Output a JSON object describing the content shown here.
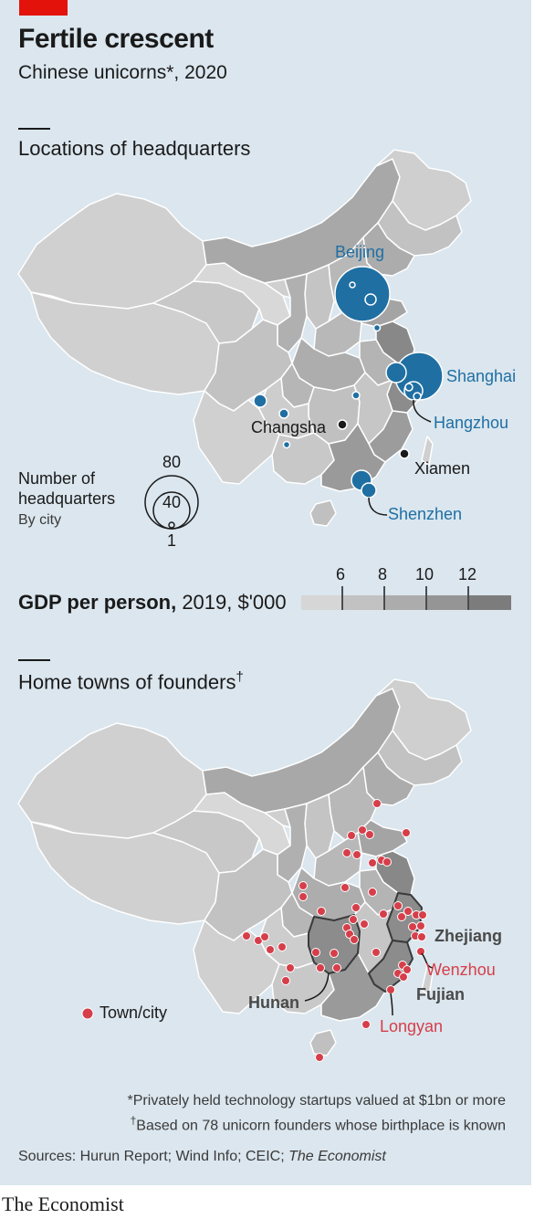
{
  "header": {
    "title": "Fertile crescent",
    "subtitle": "Chinese unicorns*, 2020"
  },
  "map1": {
    "title": "Locations of headquarters",
    "cities": {
      "beijing": "Beijing",
      "shanghai": "Shanghai",
      "hangzhou": "Hangzhou",
      "changsha": "Changsha",
      "xiamen": "Xiamen",
      "shenzhen": "Shenzhen"
    },
    "legend": {
      "line1": "Number of",
      "line2": "headquarters",
      "line3": "By city",
      "v80": "80",
      "v40": "40",
      "v1": "1"
    }
  },
  "gdp": {
    "title_bold": "GDP per person,",
    "title_rest": " 2019, $'000",
    "ticks": [
      "6",
      "8",
      "10",
      "12"
    ],
    "colors": [
      "#d6d6d6",
      "#c2c2c2",
      "#acacac",
      "#959595",
      "#7c7c7c"
    ]
  },
  "map2": {
    "title": "Home towns of founders",
    "title_mark": "†",
    "provinces": {
      "zhejiang": "Zhejiang",
      "fujian": "Fujian",
      "hunan": "Hunan"
    },
    "towns": {
      "wenzhou": "Wenzhou",
      "longyan": "Longyan"
    },
    "legend": "Town/city"
  },
  "colors": {
    "headquarters": "#1f6fa3",
    "founders": "#d63e4a",
    "accent": "#e3120b",
    "background": "#dbe6ee"
  },
  "footer": {
    "note1": "*Privately held technology startups valued at $1bn or more",
    "note2_mark": "†",
    "note2": "Based on 78 unicorn founders whose birthplace is known",
    "sources": "Sources: Hurun Report; Wind Info; CEIC; ",
    "sources_italic": "The Economist",
    "brand": "The Economist"
  }
}
